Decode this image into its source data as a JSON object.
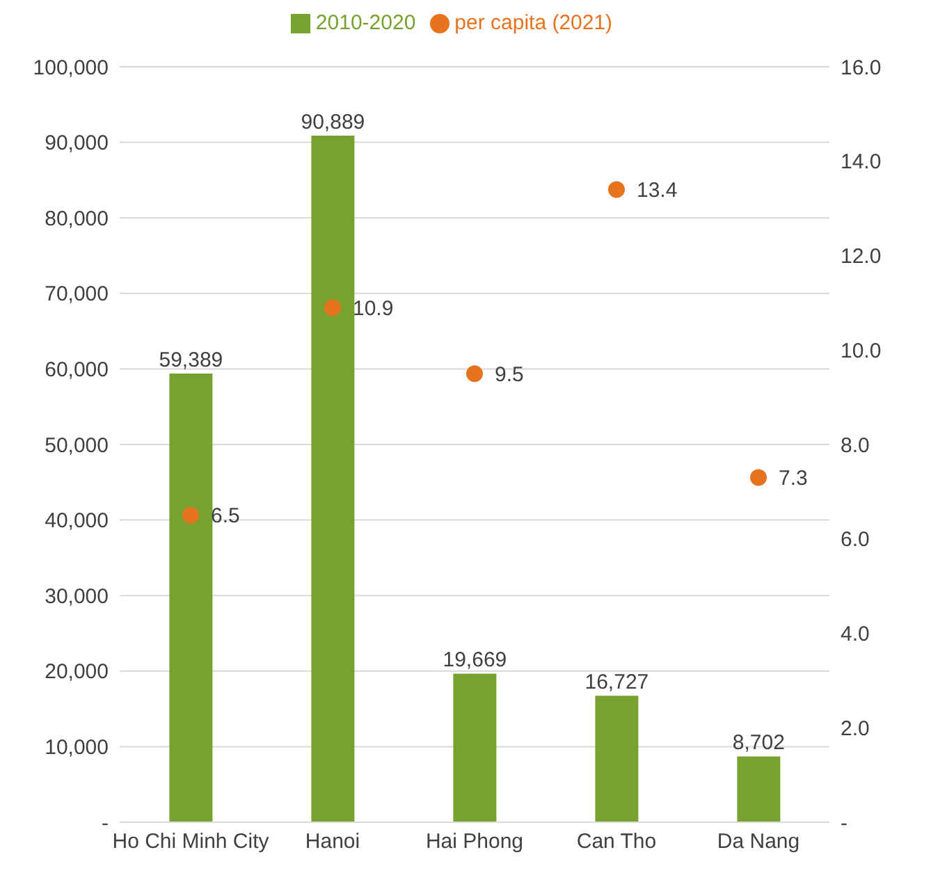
{
  "chart_data": {
    "type": "bar",
    "categories": [
      "Ho Chi Minh City",
      "Hanoi",
      "Hai Phong",
      "Can Tho",
      "Da Nang"
    ],
    "series": [
      {
        "name": "2010-2020",
        "color": "#77a22f",
        "values": [
          59389,
          90889,
          19669,
          16727,
          8702
        ],
        "value_labels": [
          "59,389",
          "90,889",
          "19,669",
          "16,727",
          "8,702"
        ]
      },
      {
        "name": "per capita (2021)",
        "type": "scatter",
        "axis": "y2",
        "color": "#e8731f",
        "values": [
          6.5,
          10.9,
          9.5,
          13.4,
          7.3
        ]
      }
    ],
    "ylim": [
      0,
      100000
    ],
    "yticks": [
      {
        "value": 0,
        "label": "-"
      },
      {
        "value": 10000,
        "label": "10,000"
      },
      {
        "value": 20000,
        "label": "20,000"
      },
      {
        "value": 30000,
        "label": "30,000"
      },
      {
        "value": 40000,
        "label": "40,000"
      },
      {
        "value": 50000,
        "label": "50,000"
      },
      {
        "value": 60000,
        "label": "60,000"
      },
      {
        "value": 70000,
        "label": "70,000"
      },
      {
        "value": 80000,
        "label": "80,000"
      },
      {
        "value": 90000,
        "label": "90,000"
      },
      {
        "value": 100000,
        "label": "100,000"
      }
    ],
    "y2lim": [
      0,
      16
    ],
    "y2ticks": [
      {
        "value": 0,
        "label": "-"
      },
      {
        "value": 2,
        "label": "2.0"
      },
      {
        "value": 4,
        "label": "4.0"
      },
      {
        "value": 6,
        "label": "6.0"
      },
      {
        "value": 8,
        "label": "8.0"
      },
      {
        "value": 10,
        "label": "10.0"
      },
      {
        "value": 12,
        "label": "12.0"
      },
      {
        "value": 14,
        "label": "14.0"
      },
      {
        "value": 16,
        "label": "16.0"
      }
    ],
    "grid": "y",
    "legend": "top",
    "data_labels": true,
    "marker": "circle"
  }
}
